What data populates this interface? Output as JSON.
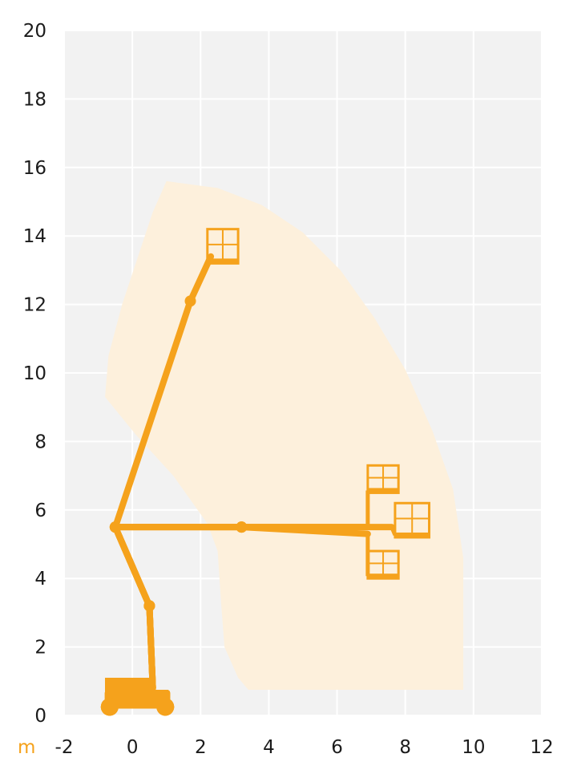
{
  "chart_data": {
    "type": "area",
    "title": "",
    "xlabel": "",
    "ylabel": "",
    "unit": "m",
    "xlim": [
      -2,
      12
    ],
    "ylim": [
      0,
      20
    ],
    "x_ticks": [
      -2,
      0,
      2,
      4,
      6,
      8,
      10,
      12
    ],
    "y_ticks": [
      0,
      2,
      4,
      6,
      8,
      10,
      12,
      14,
      16,
      18,
      20
    ],
    "grid": true,
    "colors": {
      "plot_background": "#f2f2f2",
      "grid": "#ffffff",
      "working_envelope": "#fdf0dc",
      "machine": "#f5a21c",
      "unit_label": "#f5a21c",
      "tick_text": "#1b1b1b"
    },
    "working_envelope": [
      [
        1.0,
        15.6
      ],
      [
        2.5,
        15.4
      ],
      [
        3.8,
        14.9
      ],
      [
        5.0,
        14.1
      ],
      [
        6.1,
        13.0
      ],
      [
        7.1,
        11.6
      ],
      [
        8.0,
        10.1
      ],
      [
        8.8,
        8.3
      ],
      [
        9.4,
        6.6
      ],
      [
        9.7,
        4.6
      ],
      [
        9.7,
        0.75
      ],
      [
        3.4,
        0.75
      ],
      [
        3.1,
        1.1
      ],
      [
        2.7,
        2.0
      ],
      [
        2.6,
        3.3
      ],
      [
        2.5,
        4.8
      ],
      [
        2.2,
        5.6
      ],
      [
        1.2,
        7.0
      ],
      [
        0.1,
        8.2
      ],
      [
        -0.8,
        9.3
      ],
      [
        -0.7,
        10.5
      ],
      [
        -0.3,
        12.0
      ],
      [
        0.2,
        13.5
      ],
      [
        0.6,
        14.7
      ],
      [
        1.0,
        15.6
      ]
    ],
    "machine_positions": [
      {
        "chassis_x": [
          -0.9,
          1.2
        ],
        "boom_path": [
          [
            0.6,
            0.8
          ],
          [
            0.5,
            3.2
          ],
          [
            -0.5,
            5.5
          ],
          [
            1.7,
            12.1
          ],
          [
            2.3,
            13.4
          ]
        ],
        "basket": {
          "x": [
            2.2,
            3.1
          ],
          "y": [
            13.2,
            14.2
          ]
        }
      },
      {
        "chassis_x": [
          -0.9,
          1.2
        ],
        "boom_path": [
          [
            0.6,
            0.8
          ],
          [
            0.5,
            3.2
          ],
          [
            -0.5,
            5.5
          ],
          [
            3.2,
            5.5
          ],
          [
            6.9,
            5.5
          ]
        ],
        "basket": {
          "x": [
            6.9,
            7.8
          ],
          "y": [
            6.5,
            7.3
          ]
        }
      },
      {
        "chassis_x": [
          -0.9,
          1.2
        ],
        "boom_path": [
          [
            0.6,
            0.8
          ],
          [
            0.5,
            3.2
          ],
          [
            -0.5,
            5.5
          ],
          [
            3.2,
            5.5
          ],
          [
            7.6,
            5.5
          ]
        ],
        "basket": {
          "x": [
            7.7,
            8.7
          ],
          "y": [
            5.2,
            6.2
          ]
        }
      },
      {
        "chassis_x": [
          -0.9,
          1.2
        ],
        "boom_path": [
          [
            0.6,
            0.8
          ],
          [
            0.5,
            3.2
          ],
          [
            -0.5,
            5.5
          ],
          [
            3.2,
            5.5
          ],
          [
            6.9,
            5.3
          ]
        ],
        "basket": {
          "x": [
            6.9,
            7.8
          ],
          "y": [
            4.0,
            4.8
          ]
        }
      }
    ]
  }
}
